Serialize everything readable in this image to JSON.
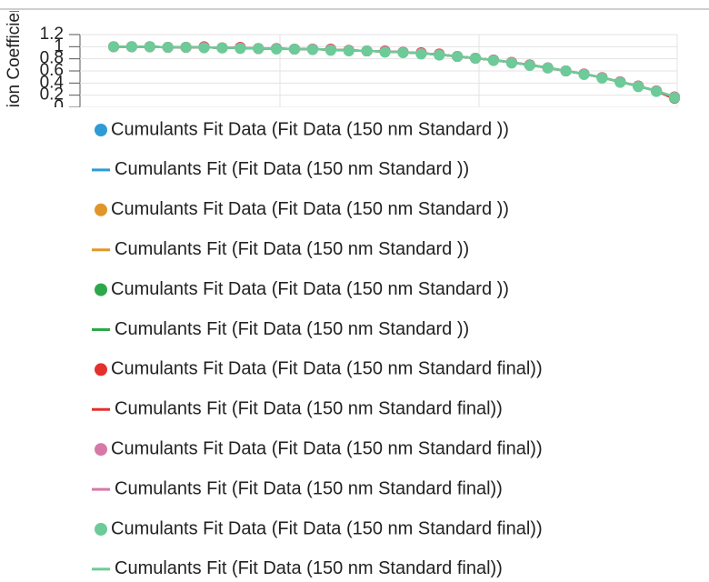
{
  "chart_data": {
    "type": "line",
    "ylabel": "Correlation Coefficient",
    "ylim": [
      0,
      1.2
    ],
    "yticks": [
      0,
      0.2,
      0.4,
      0.6,
      0.8,
      1,
      1.2
    ],
    "grid": true,
    "categories": [
      null,
      null,
      null,
      null,
      null,
      null,
      null,
      null,
      null,
      null,
      null,
      null,
      null,
      null,
      null,
      null,
      null,
      null,
      null,
      null,
      null,
      null,
      null,
      null,
      null,
      null,
      null,
      null,
      null,
      null,
      null,
      null
    ],
    "series": [
      {
        "name": "Cumulants Fit Data (Fit Data (150 nm Standard ))",
        "type": "scatter",
        "color": "#2e9bd6",
        "values": [
          1.0,
          1.0,
          1.0,
          0.99,
          0.99,
          0.99,
          0.98,
          0.98,
          0.97,
          0.97,
          0.96,
          0.96,
          0.95,
          0.94,
          0.93,
          0.92,
          0.91,
          0.89,
          0.87,
          0.84,
          0.81,
          0.78,
          0.74,
          0.7,
          0.65,
          0.6,
          0.55,
          0.49,
          0.42,
          0.35,
          0.27,
          0.17
        ]
      },
      {
        "name": "Cumulants Fit (Fit Data (150 nm Standard ))",
        "type": "line",
        "color": "#2e9bd6",
        "values": [
          1.0,
          1.0,
          1.0,
          0.99,
          0.99,
          0.99,
          0.98,
          0.98,
          0.97,
          0.97,
          0.96,
          0.96,
          0.95,
          0.94,
          0.93,
          0.92,
          0.91,
          0.89,
          0.87,
          0.84,
          0.81,
          0.78,
          0.74,
          0.7,
          0.65,
          0.6,
          0.55,
          0.49,
          0.42,
          0.35,
          0.27,
          0.17
        ]
      },
      {
        "name": "Cumulants Fit Data (Fit Data (150 nm Standard ))",
        "type": "scatter",
        "color": "#e0962a",
        "values": [
          1.0,
          1.0,
          1.0,
          0.99,
          0.99,
          0.99,
          0.98,
          0.98,
          0.97,
          0.97,
          0.96,
          0.96,
          0.95,
          0.94,
          0.93,
          0.92,
          0.91,
          0.9,
          0.87,
          0.84,
          0.81,
          0.78,
          0.74,
          0.7,
          0.65,
          0.6,
          0.55,
          0.49,
          0.42,
          0.35,
          0.27,
          0.17
        ]
      },
      {
        "name": "Cumulants Fit (Fit Data (150 nm Standard ))",
        "type": "line",
        "color": "#e0962a",
        "values": [
          1.0,
          1.0,
          1.0,
          0.99,
          0.99,
          0.99,
          0.98,
          0.98,
          0.97,
          0.97,
          0.96,
          0.96,
          0.95,
          0.94,
          0.93,
          0.92,
          0.91,
          0.89,
          0.87,
          0.84,
          0.81,
          0.78,
          0.74,
          0.7,
          0.65,
          0.6,
          0.55,
          0.49,
          0.42,
          0.35,
          0.27,
          0.17
        ]
      },
      {
        "name": "Cumulants Fit Data (Fit Data (150 nm Standard ))",
        "type": "scatter",
        "color": "#2ca84a",
        "values": [
          1.0,
          1.0,
          1.0,
          0.99,
          0.99,
          0.99,
          0.98,
          0.98,
          0.97,
          0.97,
          0.96,
          0.96,
          0.95,
          0.94,
          0.93,
          0.92,
          0.91,
          0.89,
          0.87,
          0.84,
          0.81,
          0.78,
          0.74,
          0.7,
          0.65,
          0.6,
          0.55,
          0.49,
          0.42,
          0.35,
          0.27,
          0.17
        ]
      },
      {
        "name": "Cumulants Fit (Fit Data (150 nm Standard ))",
        "type": "line",
        "color": "#2ca84a",
        "values": [
          1.0,
          1.0,
          1.0,
          0.99,
          0.99,
          0.99,
          0.98,
          0.98,
          0.97,
          0.97,
          0.96,
          0.96,
          0.95,
          0.94,
          0.93,
          0.92,
          0.91,
          0.89,
          0.87,
          0.84,
          0.81,
          0.78,
          0.74,
          0.7,
          0.65,
          0.6,
          0.55,
          0.49,
          0.42,
          0.35,
          0.27,
          0.17
        ]
      },
      {
        "name": "Cumulants Fit Data (Fit Data (150 nm Standard final))",
        "type": "scatter",
        "color": "#e3312d",
        "values": [
          1.0,
          1.0,
          1.0,
          0.99,
          0.99,
          1.0,
          0.98,
          0.99,
          0.97,
          0.97,
          0.96,
          0.96,
          0.96,
          0.94,
          0.93,
          0.93,
          0.91,
          0.9,
          0.88,
          0.84,
          0.81,
          0.78,
          0.74,
          0.7,
          0.65,
          0.6,
          0.55,
          0.49,
          0.42,
          0.35,
          0.27,
          0.15
        ]
      },
      {
        "name": "Cumulants Fit (Fit Data (150 nm Standard final))",
        "type": "line",
        "color": "#e3312d",
        "values": [
          1.0,
          1.0,
          1.0,
          0.99,
          0.99,
          0.99,
          0.98,
          0.98,
          0.97,
          0.97,
          0.96,
          0.96,
          0.95,
          0.94,
          0.93,
          0.92,
          0.91,
          0.89,
          0.87,
          0.84,
          0.81,
          0.78,
          0.74,
          0.7,
          0.65,
          0.6,
          0.55,
          0.49,
          0.42,
          0.35,
          0.27,
          0.14
        ]
      },
      {
        "name": "Cumulants Fit Data (Fit Data (150 nm Standard final))",
        "type": "scatter",
        "color": "#d779a8",
        "values": [
          1.0,
          1.0,
          1.0,
          0.99,
          0.99,
          0.99,
          0.98,
          0.98,
          0.97,
          0.97,
          0.96,
          0.96,
          0.95,
          0.94,
          0.93,
          0.92,
          0.91,
          0.89,
          0.87,
          0.84,
          0.81,
          0.78,
          0.74,
          0.7,
          0.65,
          0.6,
          0.55,
          0.49,
          0.42,
          0.35,
          0.27,
          0.17
        ]
      },
      {
        "name": "Cumulants Fit (Fit Data (150 nm Standard final))",
        "type": "line",
        "color": "#d779a8",
        "values": [
          1.0,
          1.0,
          1.0,
          0.99,
          0.99,
          0.99,
          0.98,
          0.98,
          0.97,
          0.97,
          0.96,
          0.96,
          0.95,
          0.94,
          0.93,
          0.92,
          0.91,
          0.89,
          0.87,
          0.84,
          0.81,
          0.78,
          0.74,
          0.7,
          0.65,
          0.6,
          0.55,
          0.49,
          0.42,
          0.35,
          0.27,
          0.17
        ]
      },
      {
        "name": "Cumulants Fit Data (Fit Data (150 nm Standard final))",
        "type": "scatter",
        "color": "#6ccb98",
        "values": [
          1.0,
          1.0,
          1.0,
          0.99,
          0.99,
          0.98,
          0.98,
          0.97,
          0.97,
          0.96,
          0.96,
          0.95,
          0.94,
          0.93,
          0.93,
          0.91,
          0.9,
          0.88,
          0.86,
          0.84,
          0.81,
          0.77,
          0.73,
          0.69,
          0.65,
          0.6,
          0.54,
          0.48,
          0.41,
          0.34,
          0.26,
          0.16
        ]
      },
      {
        "name": "Cumulants Fit (Fit Data (150 nm Standard final))",
        "type": "line",
        "color": "#6ccb98",
        "values": [
          1.0,
          1.0,
          1.0,
          0.99,
          0.99,
          0.99,
          0.98,
          0.98,
          0.97,
          0.97,
          0.96,
          0.96,
          0.95,
          0.94,
          0.93,
          0.92,
          0.91,
          0.89,
          0.87,
          0.84,
          0.81,
          0.78,
          0.74,
          0.7,
          0.65,
          0.6,
          0.55,
          0.49,
          0.42,
          0.35,
          0.27,
          0.17
        ]
      }
    ]
  }
}
